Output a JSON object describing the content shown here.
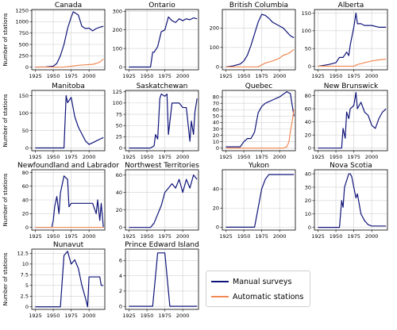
{
  "chart_data": [
    {
      "type": "line",
      "title": "Canada",
      "ylabel": "Number of stations",
      "xlim": [
        1920,
        2022
      ],
      "ylim": [
        -60,
        1270
      ],
      "yticks": [
        0,
        250,
        500,
        750,
        1000,
        1250
      ],
      "xticks": [
        1925,
        1950,
        1975,
        2000
      ],
      "series": [
        {
          "name": "Manual surveys",
          "x": [
            1925,
            1940,
            1950,
            1955,
            1960,
            1965,
            1970,
            1975,
            1978,
            1985,
            1990,
            1995,
            2000,
            2005,
            2010,
            2015,
            2020
          ],
          "y": [
            0,
            5,
            20,
            80,
            250,
            500,
            850,
            1100,
            1220,
            1150,
            900,
            850,
            860,
            800,
            850,
            880,
            900
          ]
        },
        {
          "name": "Automatic stations",
          "x": [
            1925,
            1965,
            1975,
            1985,
            1995,
            2005,
            2010,
            2015,
            2020
          ],
          "y": [
            0,
            0,
            20,
            40,
            50,
            60,
            80,
            110,
            180
          ]
        }
      ]
    },
    {
      "type": "line",
      "title": "Ontario",
      "ylabel": "",
      "xlim": [
        1920,
        2022
      ],
      "ylim": [
        -15,
        310
      ],
      "yticks": [
        0,
        100,
        200,
        300
      ],
      "xticks": [
        1925,
        1950,
        1975,
        2000
      ],
      "series": [
        {
          "name": "Manual surveys",
          "x": [
            1925,
            1940,
            1950,
            1955,
            1958,
            1960,
            1965,
            1970,
            1975,
            1980,
            1985,
            1990,
            1995,
            2000,
            2005,
            2010,
            2015,
            2020
          ],
          "y": [
            0,
            0,
            0,
            0,
            80,
            80,
            110,
            190,
            200,
            270,
            250,
            240,
            260,
            250,
            260,
            255,
            265,
            260
          ]
        }
      ]
    },
    {
      "type": "line",
      "title": "British Columbia",
      "ylabel": "",
      "xlim": [
        1920,
        2022
      ],
      "ylim": [
        -15,
        295
      ],
      "yticks": [
        0,
        100,
        200
      ],
      "xticks": [
        1925,
        1950,
        1975,
        2000
      ],
      "series": [
        {
          "name": "Manual surveys",
          "x": [
            1925,
            1935,
            1945,
            1950,
            1955,
            1960,
            1965,
            1970,
            1975,
            1980,
            1985,
            1990,
            1995,
            2000,
            2005,
            2010,
            2015,
            2020
          ],
          "y": [
            0,
            5,
            15,
            30,
            60,
            110,
            170,
            230,
            270,
            265,
            250,
            230,
            220,
            210,
            200,
            180,
            160,
            150
          ]
        },
        {
          "name": "Automatic stations",
          "x": [
            1925,
            1970,
            1980,
            1990,
            2000,
            2005,
            2010,
            2015,
            2020
          ],
          "y": [
            0,
            0,
            20,
            30,
            45,
            60,
            65,
            75,
            90
          ]
        }
      ]
    },
    {
      "type": "line",
      "title": "Alberta",
      "ylabel": "",
      "xlim": [
        1920,
        2022
      ],
      "ylim": [
        -10,
        160
      ],
      "yticks": [
        0,
        50,
        100,
        150
      ],
      "xticks": [
        1925,
        1950,
        1975,
        2000
      ],
      "series": [
        {
          "name": "Manual surveys",
          "x": [
            1925,
            1940,
            1950,
            1955,
            1960,
            1965,
            1968,
            1970,
            1975,
            1978,
            1980,
            1985,
            1990,
            2000,
            2010,
            2020
          ],
          "y": [
            0,
            5,
            10,
            25,
            25,
            40,
            30,
            60,
            110,
            150,
            120,
            120,
            115,
            115,
            110,
            110
          ]
        },
        {
          "name": "Automatic stations",
          "x": [
            1925,
            1975,
            1980,
            1990,
            2000,
            2010,
            2020
          ],
          "y": [
            0,
            0,
            5,
            10,
            15,
            18,
            20
          ]
        }
      ]
    },
    {
      "type": "line",
      "title": "Manitoba",
      "ylabel": "Number of stations",
      "xlim": [
        1920,
        2022
      ],
      "ylim": [
        -8,
        165
      ],
      "yticks": [
        0,
        50,
        100,
        150
      ],
      "xticks": [
        1925,
        1950,
        1975,
        2000
      ],
      "series": [
        {
          "name": "Manual surveys",
          "x": [
            1925,
            1960,
            1965,
            1968,
            1970,
            1975,
            1980,
            1985,
            1990,
            1995,
            2000,
            2005,
            2010,
            2015,
            2020
          ],
          "y": [
            0,
            0,
            0,
            150,
            130,
            145,
            90,
            60,
            40,
            20,
            10,
            15,
            20,
            25,
            30
          ]
        }
      ]
    },
    {
      "type": "line",
      "title": "Saskatchewan",
      "ylabel": "",
      "xlim": [
        1920,
        2022
      ],
      "ylim": [
        -6,
        128
      ],
      "yticks": [
        0,
        25,
        50,
        75,
        100,
        125
      ],
      "xticks": [
        1925,
        1950,
        1975,
        2000
      ],
      "series": [
        {
          "name": "Manual surveys",
          "x": [
            1925,
            1955,
            1960,
            1962,
            1965,
            1968,
            1970,
            1975,
            1978,
            1980,
            1985,
            1995,
            2000,
            2005,
            2010,
            2012,
            2015,
            2017,
            2020
          ],
          "y": [
            0,
            0,
            5,
            30,
            20,
            110,
            120,
            115,
            120,
            30,
            100,
            100,
            90,
            90,
            15,
            60,
            30,
            80,
            110
          ]
        }
      ]
    },
    {
      "type": "line",
      "title": "Quebec",
      "ylabel": "",
      "xlim": [
        1920,
        2022
      ],
      "ylim": [
        -4,
        90
      ],
      "yticks": [
        0,
        10,
        20,
        30,
        40,
        50,
        60,
        70,
        80
      ],
      "xticks": [
        1925,
        1950,
        1975,
        2000
      ],
      "series": [
        {
          "name": "Manual surveys",
          "x": [
            1925,
            1945,
            1950,
            1955,
            1960,
            1965,
            1970,
            1975,
            1980,
            1990,
            2000,
            2010,
            2015,
            2020
          ],
          "y": [
            2,
            2,
            10,
            15,
            15,
            25,
            55,
            65,
            70,
            75,
            80,
            88,
            85,
            50
          ]
        },
        {
          "name": "Automatic stations",
          "x": [
            1925,
            2005,
            2010,
            2013,
            2015,
            2018,
            2020
          ],
          "y": [
            0,
            0,
            2,
            10,
            25,
            45,
            60
          ]
        }
      ]
    },
    {
      "type": "line",
      "title": "New Brunswick",
      "ylabel": "",
      "xlim": [
        1920,
        2022
      ],
      "ylim": [
        -4,
        88
      ],
      "yticks": [
        0,
        20,
        40,
        60,
        80
      ],
      "xticks": [
        1925,
        1950,
        1975,
        2000
      ],
      "series": [
        {
          "name": "Manual surveys",
          "x": [
            1925,
            1955,
            1958,
            1960,
            1963,
            1965,
            1968,
            1970,
            1975,
            1978,
            1980,
            1985,
            1990,
            1995,
            2000,
            2005,
            2010,
            2015,
            2020
          ],
          "y": [
            0,
            0,
            0,
            30,
            15,
            55,
            45,
            60,
            65,
            85,
            60,
            70,
            55,
            50,
            35,
            30,
            45,
            55,
            60
          ]
        }
      ]
    },
    {
      "type": "line",
      "title": "Newfoundland and Labrador",
      "ylabel": "Number of stations",
      "xlim": [
        1920,
        2022
      ],
      "ylim": [
        -4,
        84
      ],
      "yticks": [
        0,
        20,
        40,
        60,
        80
      ],
      "xticks": [
        1925,
        1950,
        1975,
        2000
      ],
      "series": [
        {
          "name": "Manual surveys",
          "x": [
            1925,
            1948,
            1950,
            1952,
            1955,
            1958,
            1960,
            1965,
            1970,
            1972,
            1975,
            1980,
            1990,
            2000,
            2005,
            2010,
            2012,
            2015,
            2017,
            2020
          ],
          "y": [
            0,
            0,
            10,
            30,
            45,
            20,
            50,
            75,
            70,
            30,
            35,
            35,
            35,
            35,
            35,
            20,
            40,
            10,
            35,
            0
          ]
        },
        {
          "name": "Automatic stations",
          "x": [
            1925,
            2020
          ],
          "y": [
            0,
            0
          ]
        }
      ]
    },
    {
      "type": "line",
      "title": "Northwest Territories",
      "ylabel": "",
      "xlim": [
        1920,
        2022
      ],
      "ylim": [
        -3,
        66
      ],
      "yticks": [
        0,
        20,
        40,
        60
      ],
      "xticks": [
        1925,
        1950,
        1975,
        2000
      ],
      "series": [
        {
          "name": "Manual surveys",
          "x": [
            1925,
            1955,
            1960,
            1965,
            1970,
            1975,
            1980,
            1985,
            1990,
            1995,
            2000,
            2005,
            2010,
            2015,
            2020
          ],
          "y": [
            0,
            0,
            5,
            15,
            25,
            40,
            45,
            50,
            45,
            55,
            40,
            55,
            45,
            60,
            55
          ]
        }
      ]
    },
    {
      "type": "line",
      "title": "Yukon",
      "ylabel": "",
      "xlim": [
        1920,
        2022
      ],
      "ylim": [
        -3,
        60
      ],
      "yticks": [
        0,
        20,
        40
      ],
      "xticks": [
        1925,
        1950,
        1975,
        2000
      ],
      "series": [
        {
          "name": "Manual surveys",
          "x": [
            1925,
            1965,
            1970,
            1975,
            1980,
            1985,
            1990,
            2000,
            2010,
            2020
          ],
          "y": [
            0,
            0,
            20,
            40,
            50,
            55,
            55,
            55,
            55,
            55
          ]
        }
      ]
    },
    {
      "type": "line",
      "title": "Nova Scotia",
      "ylabel": "",
      "xlim": [
        1920,
        2022
      ],
      "ylim": [
        -2,
        43
      ],
      "yticks": [
        0,
        10,
        20,
        30,
        40
      ],
      "xticks": [
        1925,
        1950,
        1975,
        2000
      ],
      "series": [
        {
          "name": "Manual surveys",
          "x": [
            1925,
            1950,
            1955,
            1958,
            1960,
            1962,
            1965,
            1968,
            1970,
            1972,
            1975,
            1978,
            1980,
            1985,
            1990,
            1995,
            2000,
            2010,
            2020
          ],
          "y": [
            0,
            0,
            0,
            20,
            15,
            30,
            35,
            40,
            40,
            38,
            30,
            22,
            25,
            10,
            5,
            2,
            1,
            1,
            1
          ]
        }
      ]
    },
    {
      "type": "line",
      "title": "Nunavut",
      "ylabel": "Number of stations",
      "xlim": [
        1920,
        2022
      ],
      "ylim": [
        -0.6,
        13.5
      ],
      "yticks": [
        0,
        2.5,
        5,
        7.5,
        10,
        12.5
      ],
      "xticks": [
        1925,
        1950,
        1975,
        2000
      ],
      "series": [
        {
          "name": "Manual surveys",
          "x": [
            1925,
            1960,
            1965,
            1970,
            1975,
            1980,
            1985,
            1990,
            1995,
            1998,
            2000,
            2005,
            2010,
            2015,
            2017,
            2020
          ],
          "y": [
            0,
            0,
            12,
            13,
            10,
            11,
            9,
            5,
            2,
            0,
            7,
            7,
            7,
            7,
            5,
            5
          ]
        }
      ]
    },
    {
      "type": "line",
      "title": "Prince Edward Island",
      "ylabel": "",
      "xlim": [
        1920,
        2022
      ],
      "ylim": [
        -0.4,
        7.5
      ],
      "yticks": [
        0,
        2,
        4,
        6
      ],
      "xticks": [
        1925,
        1950,
        1975,
        2000
      ],
      "series": [
        {
          "name": "Manual surveys",
          "x": [
            1925,
            1958,
            1962,
            1965,
            1975,
            1978,
            1982,
            2020
          ],
          "y": [
            0,
            0,
            4,
            7,
            7,
            4,
            0,
            0
          ]
        }
      ]
    }
  ],
  "legend": {
    "placement": "bottom-right",
    "entries": [
      {
        "label": "Manual surveys",
        "color": "#0f1478"
      },
      {
        "label": "Automatic stations",
        "color": "#f08a55"
      }
    ]
  },
  "colors": {
    "Manual surveys": "#0f1478",
    "Automatic stations": "#f08a55",
    "grid": "#d0d0d0",
    "axes": "#000000"
  }
}
